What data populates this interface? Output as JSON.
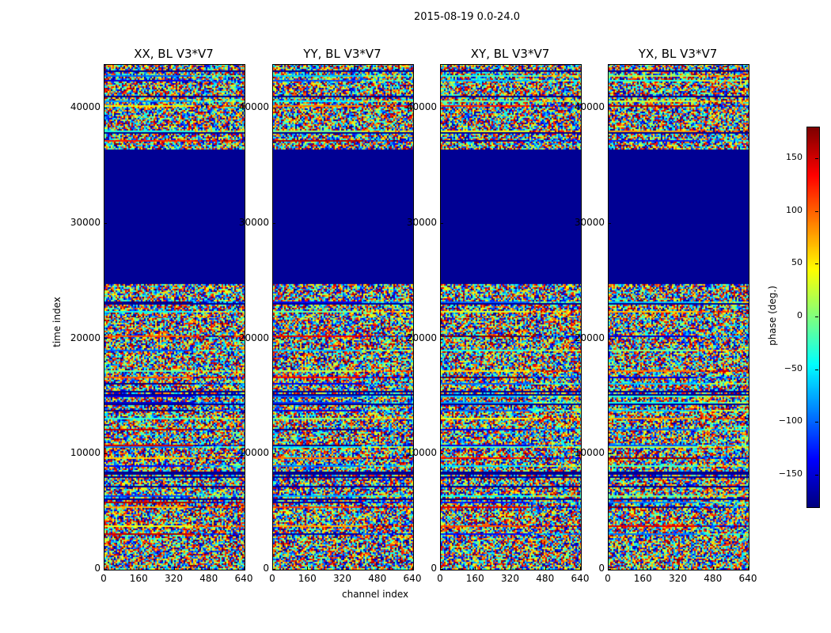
{
  "suptitle": "2015-08-19 0.0-24.0",
  "chart_data": {
    "type": "heatmap",
    "title": "2015-08-19 0.0-24.0",
    "xlabel": "channel index",
    "ylabel": "time index",
    "panels": [
      {
        "title": "XX, BL V3*V7"
      },
      {
        "title": "YY, BL V3*V7"
      },
      {
        "title": "XY, BL V3*V7"
      },
      {
        "title": "YX, BL V3*V7"
      }
    ],
    "xlim": [
      0,
      640
    ],
    "ylim": [
      0,
      43800
    ],
    "xticks": [
      "0",
      "160",
      "320",
      "480",
      "640"
    ],
    "xtick_values": [
      0,
      160,
      320,
      480,
      640
    ],
    "yticks": [
      "0",
      "10000",
      "20000",
      "30000",
      "40000"
    ],
    "ytick_values": [
      0,
      10000,
      20000,
      30000,
      40000
    ],
    "flagged_time_range": [
      24800,
      36400
    ],
    "flagged_value": -180,
    "colorbar": {
      "label": "phase (deg.)",
      "range": [
        -180,
        180
      ],
      "colormap": "jet",
      "ticks": [
        "150",
        "100",
        "50",
        "0",
        "−50",
        "−100",
        "−150"
      ],
      "tick_values": [
        150,
        100,
        50,
        0,
        -50,
        -100,
        -150
      ]
    }
  }
}
